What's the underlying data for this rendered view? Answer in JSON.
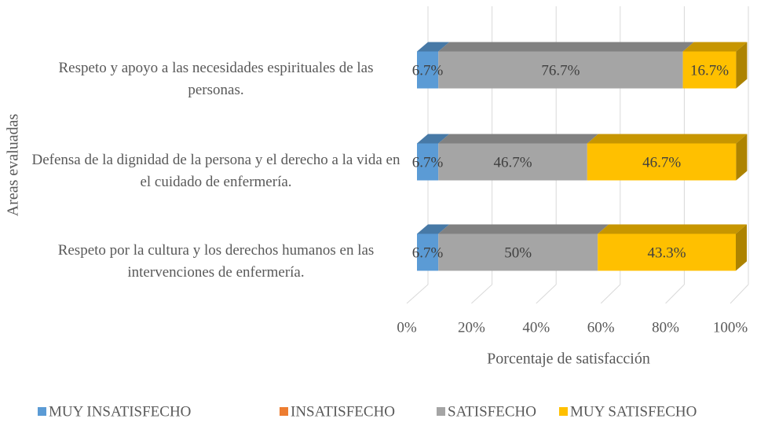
{
  "chart_data": {
    "type": "bar",
    "orientation": "horizontal",
    "stacked": true,
    "y_label": "Areas evaluadas",
    "x_label": "Porcentaje de satisfacción",
    "categories": [
      "Respeto y apoyo a las necesidades espirituales de las personas.",
      "Defensa de la dignidad de la persona y el derecho a la vida en el cuidado de enfermería.",
      "Respeto por la cultura y los derechos humanos en las intervenciones de enfermería."
    ],
    "series": [
      {
        "name": "MUY INSATISFECHO",
        "color": "#5b9bd5",
        "values": [
          6.7,
          6.7,
          6.7
        ],
        "value_labels": [
          "6.7%",
          "6.7%",
          "6.7%"
        ]
      },
      {
        "name": "INSATISFECHO",
        "color": "#ed7d31",
        "values": [
          0,
          0,
          0
        ]
      },
      {
        "name": "SATISFECHO",
        "color": "#a5a5a5",
        "values": [
          76.7,
          46.7,
          50
        ],
        "value_labels": [
          "76.7%",
          "46.7%",
          "50%"
        ]
      },
      {
        "name": "MUY SATISFECHO",
        "color": "#ffc000",
        "values": [
          16.7,
          46.7,
          43.3
        ],
        "value_labels": [
          "16.7%",
          "46.7%",
          "43.3%"
        ]
      }
    ],
    "xlim": [
      0,
      100
    ],
    "xticks": [
      {
        "value": 0,
        "label": "0%"
      },
      {
        "value": 20,
        "label": "20%"
      },
      {
        "value": 40,
        "label": "40%"
      },
      {
        "value": 60,
        "label": "60%"
      },
      {
        "value": 80,
        "label": "80%"
      },
      {
        "value": 100,
        "label": "100%"
      }
    ],
    "grid": true,
    "legend": "bottom"
  }
}
